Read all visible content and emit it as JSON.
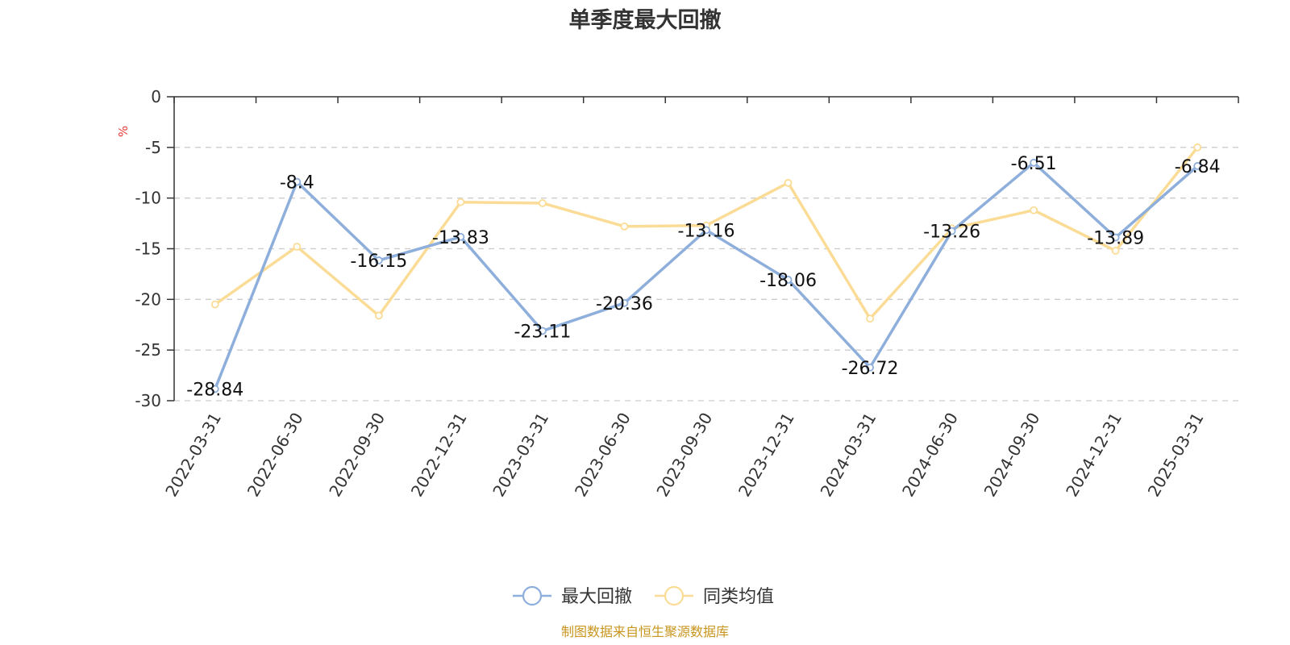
{
  "title": "单季度最大回撤",
  "source": "制图数据来自恒生聚源数据库",
  "chart_data": {
    "type": "line",
    "title": "单季度最大回撤",
    "ylabel": "%",
    "ylim": [
      -30,
      0
    ],
    "yticks": [
      0,
      -5,
      -10,
      -15,
      -20,
      -25,
      -30
    ],
    "grid": true,
    "legend_position": "bottom",
    "x": [
      "2022-03-31",
      "2022-06-30",
      "2022-09-30",
      "2022-12-31",
      "2023-03-31",
      "2023-06-30",
      "2023-09-30",
      "2023-12-31",
      "2024-03-31",
      "2024-06-30",
      "2024-09-30",
      "2024-12-31",
      "2025-03-31"
    ],
    "series": [
      {
        "name": "最大回撤",
        "color": "#8eaedb",
        "show_labels": true,
        "values": [
          -28.84,
          -8.4,
          -16.15,
          -13.83,
          -23.11,
          -20.36,
          -13.16,
          -18.06,
          -26.72,
          -13.26,
          -6.51,
          -13.89,
          -6.84
        ]
      },
      {
        "name": "同类均值",
        "color": "#fbdc96",
        "show_labels": false,
        "values": [
          -20.5,
          -14.8,
          -21.6,
          -10.4,
          -10.5,
          -12.8,
          -12.7,
          -8.5,
          -21.9,
          -13.0,
          -11.2,
          -15.2,
          -5.0
        ]
      }
    ]
  }
}
